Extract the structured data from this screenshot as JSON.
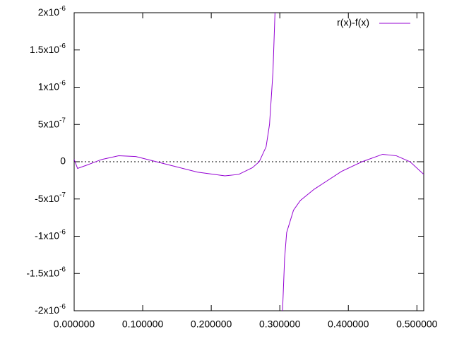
{
  "chart_data": {
    "type": "line",
    "x": [
      0,
      0.005,
      0.02,
      0.04,
      0.065,
      0.09,
      0.12,
      0.15,
      0.18,
      0.22,
      0.24,
      0.26,
      0.27,
      0.28,
      0.285,
      0.29,
      0.293,
      0.3,
      0.304,
      0.307,
      0.31,
      0.32,
      0.33,
      0.35,
      0.37,
      0.39,
      0.42,
      0.45,
      0.47,
      0.49,
      0.51
    ],
    "series": [
      {
        "name": "r(x)-f(x)",
        "color": "#9400d3",
        "values": [
          3e-08,
          -9e-08,
          -4e-08,
          3e-08,
          8e-08,
          7e-08,
          0,
          -7e-08,
          -1.4e-07,
          -1.9e-07,
          -1.7e-07,
          -8e-08,
          0,
          2e-07,
          5e-07,
          1.2e-06,
          2e-06,
          null,
          -2e-06,
          -1.3e-06,
          -9.5e-07,
          -6.5e-07,
          -5.2e-07,
          -3.7e-07,
          -2.5e-07,
          -1.3e-07,
          0,
          1e-07,
          8e-08,
          0,
          -1.7e-07
        ]
      }
    ],
    "xlim": [
      0,
      0.51
    ],
    "ylim": [
      -2e-06,
      2e-06
    ],
    "xticks": [
      {
        "value": 0,
        "label": "0.000000"
      },
      {
        "value": 0.1,
        "label": "0.100000"
      },
      {
        "value": 0.2,
        "label": "0.200000"
      },
      {
        "value": 0.3,
        "label": "0.300000"
      },
      {
        "value": 0.4,
        "label": "0.400000"
      },
      {
        "value": 0.5,
        "label": "0.500000"
      }
    ],
    "yticks": [
      {
        "value": -2e-06,
        "label": "-2x10-6"
      },
      {
        "value": -1.5e-06,
        "label": "-1.5x10-6"
      },
      {
        "value": -1e-06,
        "label": "-1x10-6"
      },
      {
        "value": -5e-07,
        "label": "-5x10-7"
      },
      0,
      {
        "value": 5e-07,
        "label": "5x10-7"
      },
      {
        "value": 1e-06,
        "label": "1x10-6"
      },
      {
        "value": 1.5e-06,
        "label": "1.5x10-6"
      },
      {
        "value": 2e-06,
        "label": "2x10-6"
      }
    ],
    "zero_line": true,
    "legend": "top-right"
  }
}
